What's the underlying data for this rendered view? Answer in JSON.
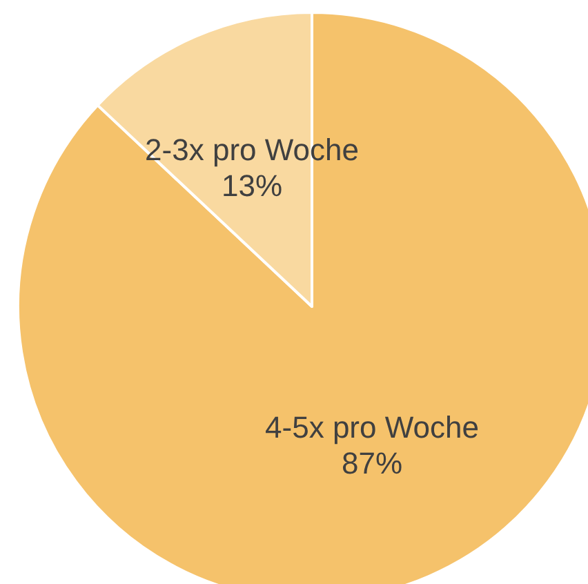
{
  "chart_data": {
    "type": "pie",
    "categories": [
      "4-5x pro Woche",
      "2-3x pro Woche"
    ],
    "values": [
      87,
      13
    ],
    "colors": [
      "#f5c26b",
      "#f9d9a0"
    ],
    "value_labels": [
      "87%",
      "13%"
    ],
    "legend": false
  }
}
